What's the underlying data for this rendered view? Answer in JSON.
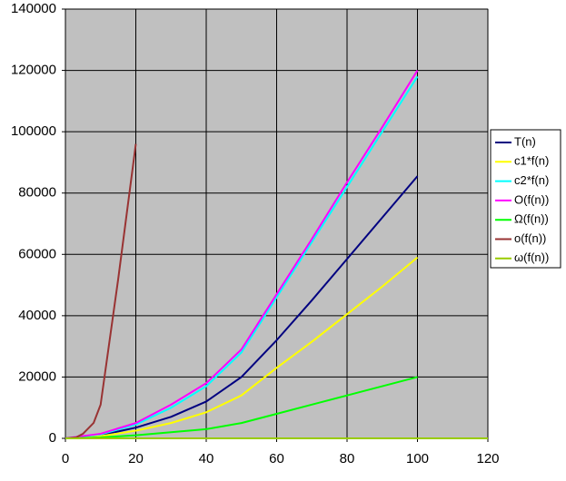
{
  "chart_data": {
    "type": "line",
    "xlim": [
      0,
      120
    ],
    "xticks": [
      0,
      20,
      40,
      60,
      80,
      100,
      120
    ],
    "ylim": [
      0,
      140000
    ],
    "yticks": [
      0,
      20000,
      40000,
      60000,
      80000,
      100000,
      120000,
      140000
    ],
    "grid": true,
    "legend": "right",
    "series": [
      {
        "name": "T(n)",
        "color": "#000080",
        "x": [
          0,
          10,
          20,
          30,
          40,
          50,
          60,
          70,
          80,
          90,
          100
        ],
        "values": [
          0,
          1000,
          3500,
          7000,
          12000,
          20000,
          32000,
          45000,
          58500,
          72000,
          85500
        ]
      },
      {
        "name": "c1*f(n)",
        "color": "#ffff00",
        "x": [
          0,
          10,
          20,
          30,
          40,
          50,
          60,
          70,
          80,
          90,
          100
        ],
        "values": [
          0,
          700,
          2500,
          5000,
          8500,
          14000,
          23000,
          31500,
          40500,
          49500,
          59000
        ]
      },
      {
        "name": "c2*f(n)",
        "color": "#00ffff",
        "x": [
          0,
          10,
          20,
          30,
          40,
          50,
          60,
          70,
          80,
          90,
          100
        ],
        "values": [
          0,
          1300,
          4500,
          10000,
          17000,
          28000,
          46000,
          64000,
          82000,
          100000,
          118000
        ]
      },
      {
        "name": "O(f(n))",
        "color": "#ff00ff",
        "x": [
          0,
          10,
          20,
          30,
          40,
          50,
          60,
          70,
          80,
          90,
          100
        ],
        "values": [
          0,
          1500,
          5000,
          11000,
          18000,
          29000,
          47000,
          65000,
          83500,
          101500,
          120000
        ]
      },
      {
        "name": "Ω(f(n))",
        "color": "#00ff00",
        "x": [
          0,
          10,
          20,
          30,
          40,
          50,
          60,
          70,
          80,
          90,
          100
        ],
        "values": [
          0,
          300,
          1000,
          2000,
          3000,
          5000,
          8000,
          11000,
          14000,
          17000,
          20000
        ]
      },
      {
        "name": "o(f(n))",
        "color": "#993333",
        "x": [
          0,
          3,
          5,
          8,
          10,
          15,
          20
        ],
        "values": [
          0,
          300,
          1500,
          5000,
          11000,
          52000,
          96000
        ]
      },
      {
        "name": "ω(f(n))",
        "color": "#99cc00",
        "x": [
          0,
          20,
          40,
          60,
          80,
          100,
          120
        ],
        "values": [
          0,
          0,
          0,
          0,
          0,
          0,
          0
        ]
      }
    ]
  }
}
